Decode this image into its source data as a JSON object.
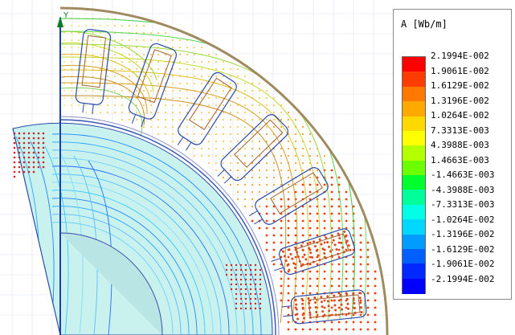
{
  "plot": {
    "y_axis_label": "Y",
    "background": "#ffffff",
    "axis_color": "#1a3fa8",
    "stator_outline_color": "#a08a60",
    "rotor_fill": "#c9f1ee",
    "grid_color": "#dfe3f0"
  },
  "legend": {
    "title": "A [Wb/m]",
    "entries": [
      {
        "label": "2.1994E-002",
        "color": "#ff0000"
      },
      {
        "label": "1.9061E-002",
        "color": "#ff3c00"
      },
      {
        "label": "1.6129E-002",
        "color": "#ff7800"
      },
      {
        "label": "1.3196E-002",
        "color": "#ffa800"
      },
      {
        "label": "1.0264E-002",
        "color": "#ffd800"
      },
      {
        "label": "7.3313E-003",
        "color": "#ffff00"
      },
      {
        "label": "4.3988E-003",
        "color": "#b4ff00"
      },
      {
        "label": "1.4663E-003",
        "color": "#6cff00"
      },
      {
        "label": "-1.4663E-003",
        "color": "#00ff2c"
      },
      {
        "label": "-4.3988E-003",
        "color": "#00ff9a"
      },
      {
        "label": "-7.3313E-003",
        "color": "#00ffe4"
      },
      {
        "label": "-1.0264E-002",
        "color": "#00d8ff"
      },
      {
        "label": "-1.3196E-002",
        "color": "#009cff"
      },
      {
        "label": "-1.6129E-002",
        "color": "#0060ff"
      },
      {
        "label": "-1.9061E-002",
        "color": "#0028ff"
      },
      {
        "label": "-2.1994E-002",
        "color": "#0000ff"
      }
    ]
  }
}
